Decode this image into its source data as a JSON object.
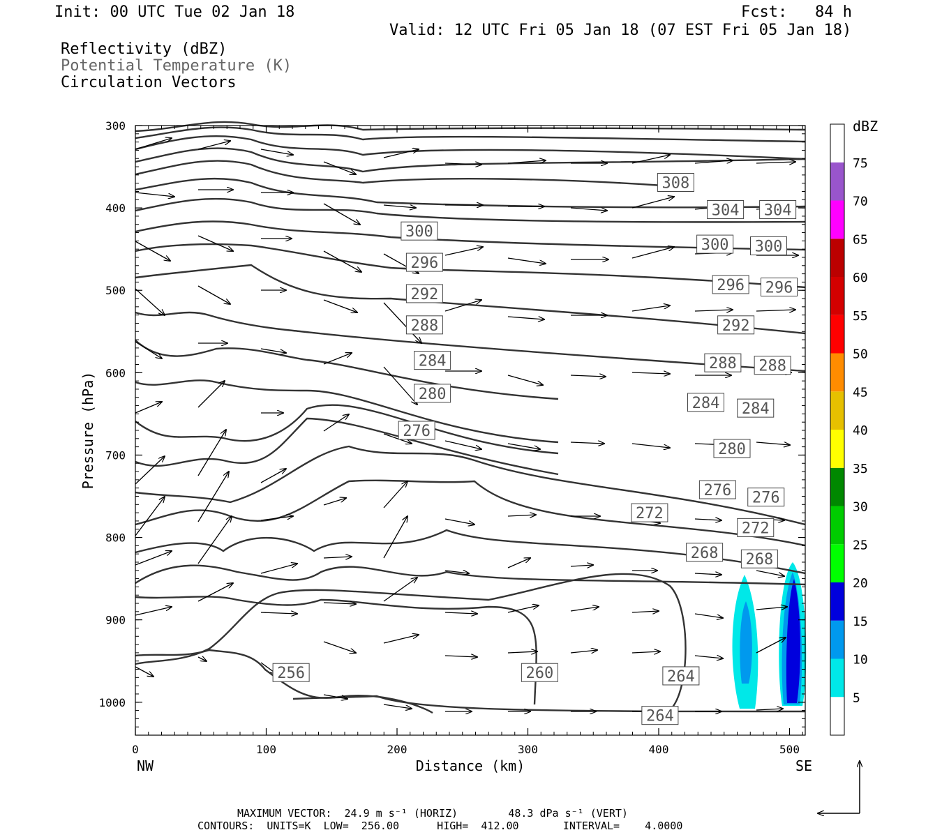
{
  "header": {
    "init": "Init: 00 UTC Tue 02 Jan 18",
    "fcst": "Fcst:   84 h",
    "valid": "Valid: 12 UTC Fri 05 Jan 18 (07 EST Fri 05 Jan 18)"
  },
  "legend": {
    "reflectivity": "Reflectivity (dBZ)",
    "theta": "Potential Temperature (K)",
    "vectors": "Circulation Vectors",
    "theta_color": "#666666"
  },
  "footer": {
    "max_vector": "MAXIMUM VECTOR:  24.9 m s⁻¹ (HORIZ)        48.3 dPa s⁻¹ (VERT)",
    "contours": "CONTOURS:  UNITS=K  LOW=  256.00      HIGH=  412.00       INTERVAL=    4.0000"
  },
  "chart_data": {
    "type": "cross-section",
    "title": "",
    "xlabel": "Distance (km)",
    "ylabel": "Pressure (hPa)",
    "xlim": [
      0,
      512
    ],
    "ylim": [
      1040,
      300
    ],
    "x_ticks": [
      0,
      100,
      200,
      300,
      400,
      500
    ],
    "y_ticks": [
      300,
      400,
      500,
      600,
      700,
      800,
      900,
      1000
    ],
    "x_end_labels": {
      "left": "NW",
      "right": "SE"
    },
    "colorbar": {
      "label": "dBZ",
      "ticks": [
        5,
        10,
        15,
        20,
        25,
        30,
        35,
        40,
        45,
        50,
        55,
        60,
        65,
        70,
        75
      ],
      "colors": [
        "#ffffff",
        "#00e8e8",
        "#0099ee",
        "#0000dd",
        "#00ff00",
        "#00cc00",
        "#008800",
        "#ffff00",
        "#e6c000",
        "#ff8c00",
        "#ff0000",
        "#d40000",
        "#bb0000",
        "#ff00ff",
        "#9955cc",
        "#ffffff"
      ]
    },
    "theta_labels": [
      {
        "v": "308",
        "x": 413,
        "p": 369
      },
      {
        "v": "304",
        "x": 451,
        "p": 402
      },
      {
        "v": "304",
        "x": 491,
        "p": 402
      },
      {
        "v": "300",
        "x": 217,
        "p": 428
      },
      {
        "v": "300",
        "x": 443,
        "p": 444
      },
      {
        "v": "300",
        "x": 484,
        "p": 446
      },
      {
        "v": "296",
        "x": 221,
        "p": 466
      },
      {
        "v": "296",
        "x": 455,
        "p": 493
      },
      {
        "v": "296",
        "x": 492,
        "p": 496
      },
      {
        "v": "292",
        "x": 221,
        "p": 504
      },
      {
        "v": "292",
        "x": 459,
        "p": 542
      },
      {
        "v": "288",
        "x": 221,
        "p": 542
      },
      {
        "v": "288",
        "x": 449,
        "p": 588
      },
      {
        "v": "288",
        "x": 487,
        "p": 591
      },
      {
        "v": "284",
        "x": 227,
        "p": 585
      },
      {
        "v": "284",
        "x": 436,
        "p": 636
      },
      {
        "v": "284",
        "x": 474,
        "p": 643
      },
      {
        "v": "280",
        "x": 227,
        "p": 625
      },
      {
        "v": "280",
        "x": 456,
        "p": 692
      },
      {
        "v": "276",
        "x": 215,
        "p": 670
      },
      {
        "v": "276",
        "x": 445,
        "p": 742
      },
      {
        "v": "276",
        "x": 482,
        "p": 751
      },
      {
        "v": "272",
        "x": 393,
        "p": 770
      },
      {
        "v": "272",
        "x": 474,
        "p": 788
      },
      {
        "v": "268",
        "x": 435,
        "p": 818
      },
      {
        "v": "268",
        "x": 477,
        "p": 826
      },
      {
        "v": "260",
        "x": 309,
        "p": 964
      },
      {
        "v": "256",
        "x": 119,
        "p": 964
      },
      {
        "v": "264",
        "x": 417,
        "p": 968
      },
      {
        "v": "264",
        "x": 401,
        "p": 1016
      }
    ]
  }
}
